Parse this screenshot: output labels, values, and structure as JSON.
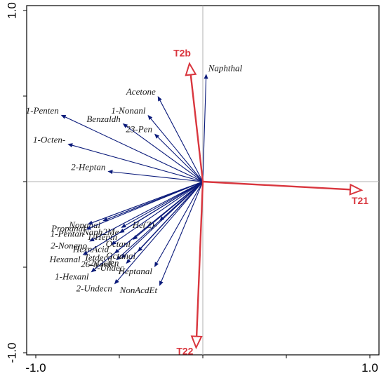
{
  "chart_data": {
    "type": "scatter",
    "subtype": "biplot",
    "title": "",
    "xlabel": "",
    "ylabel": "",
    "xlim": [
      -1.05,
      1.05
    ],
    "ylim": [
      -1.0,
      1.0
    ],
    "x_ticks": [
      {
        "value": -1.0,
        "label": "-1.0"
      },
      {
        "value": 1.0,
        "label": "1.0"
      }
    ],
    "y_ticks": [
      {
        "value": 1.0,
        "label": "1.0"
      },
      {
        "value": -1.0,
        "label": "-1.0"
      }
    ],
    "grid": false,
    "reference_lines": [
      0,
      0
    ],
    "colors": {
      "species": "#0a1a7a",
      "environment": "#d9363e",
      "frame": "#000000",
      "reference": "#b0b0b0"
    },
    "species_arrows": [
      {
        "name": "Naphthal",
        "x": 0.02,
        "y": 0.63
      },
      {
        "name": "Acetone",
        "x": -0.27,
        "y": 0.5
      },
      {
        "name": "1-Nonanl",
        "x": -0.33,
        "y": 0.39
      },
      {
        "name": "Benzaldh",
        "x": -0.48,
        "y": 0.34
      },
      {
        "name": "1-Penten",
        "x": -0.85,
        "y": 0.39
      },
      {
        "name": "23-Pen",
        "x": -0.29,
        "y": 0.28
      },
      {
        "name": "1-Octen-",
        "x": -0.81,
        "y": 0.22
      },
      {
        "name": "2-Heptan",
        "x": -0.57,
        "y": 0.06
      },
      {
        "name": "Nonanal",
        "x": -0.6,
        "y": -0.23
      },
      {
        "name": "Propanal",
        "x": -0.69,
        "y": -0.25
      },
      {
        "name": "Naph2Me",
        "x": -0.49,
        "y": -0.27
      },
      {
        "name": "1-Pentan",
        "x": -0.7,
        "y": -0.28
      },
      {
        "name": "2-Nonano",
        "x": -0.68,
        "y": -0.35
      },
      {
        "name": "1-Heptn",
        "x": -0.5,
        "y": -0.3
      },
      {
        "name": "He(Z)-",
        "x": -0.26,
        "y": -0.23
      },
      {
        "name": "Octanl",
        "x": -0.42,
        "y": -0.34
      },
      {
        "name": "HexnAcid",
        "x": -0.55,
        "y": -0.37
      },
      {
        "name": "Tetdecn",
        "x": -0.53,
        "y": -0.42
      },
      {
        "name": "2-Octen",
        "x": -0.49,
        "y": -0.45
      },
      {
        "name": "Hexanal",
        "x": -0.72,
        "y": -0.43
      },
      {
        "name": "26-NonE",
        "x": -0.52,
        "y": -0.46
      },
      {
        "name": "Octanal",
        "x": -0.39,
        "y": -0.41
      },
      {
        "name": "2-Undec",
        "x": -0.46,
        "y": -0.48
      },
      {
        "name": "Heptanal",
        "x": -0.29,
        "y": -0.5
      },
      {
        "name": "1-Hexanl",
        "x": -0.67,
        "y": -0.53
      },
      {
        "name": "2-Undecn",
        "x": -0.53,
        "y": -0.6
      },
      {
        "name": "NonAcdEt",
        "x": -0.26,
        "y": -0.61
      }
    ],
    "env_arrows": [
      {
        "name": "T2b",
        "x": -0.08,
        "y": 0.69
      },
      {
        "name": "T21",
        "x": 0.95,
        "y": -0.05
      },
      {
        "name": "T22",
        "x": -0.04,
        "y": -0.97
      }
    ]
  }
}
